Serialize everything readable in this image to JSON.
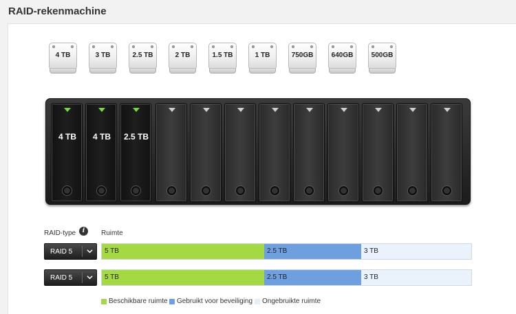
{
  "page": {
    "title": "RAID-rekenmachine"
  },
  "drives": [
    "4 TB",
    "3 TB",
    "2.5 TB",
    "2 TB",
    "1.5 TB",
    "1 TB",
    "750GB",
    "640GB",
    "500GB"
  ],
  "bays": {
    "filled": [
      "4 TB",
      "4 TB",
      "2.5 TB"
    ],
    "total": 12
  },
  "table": {
    "raid_type_header": "RAID-type",
    "space_header": "Ruimte",
    "rows": [
      {
        "raid_type": "RAID 5",
        "usable": "5 TB",
        "protection": "2.5 TB",
        "unused": "3 TB"
      },
      {
        "raid_type": "RAID 5",
        "usable": "5 TB",
        "protection": "2.5 TB",
        "unused": "3 TB"
      }
    ]
  },
  "legend": {
    "usable": "Beschikbare ruimte",
    "protection": "Gebruikt voor beveiliging",
    "unused": "Ongebruikte ruimte"
  },
  "colors": {
    "usable": "#a4d944",
    "protection": "#6e9fdf",
    "unused": "#eaf3fb",
    "led_active": "#6fe03a"
  },
  "icons": {
    "info": "info-icon",
    "dropdown": "chevron-down-icon"
  }
}
